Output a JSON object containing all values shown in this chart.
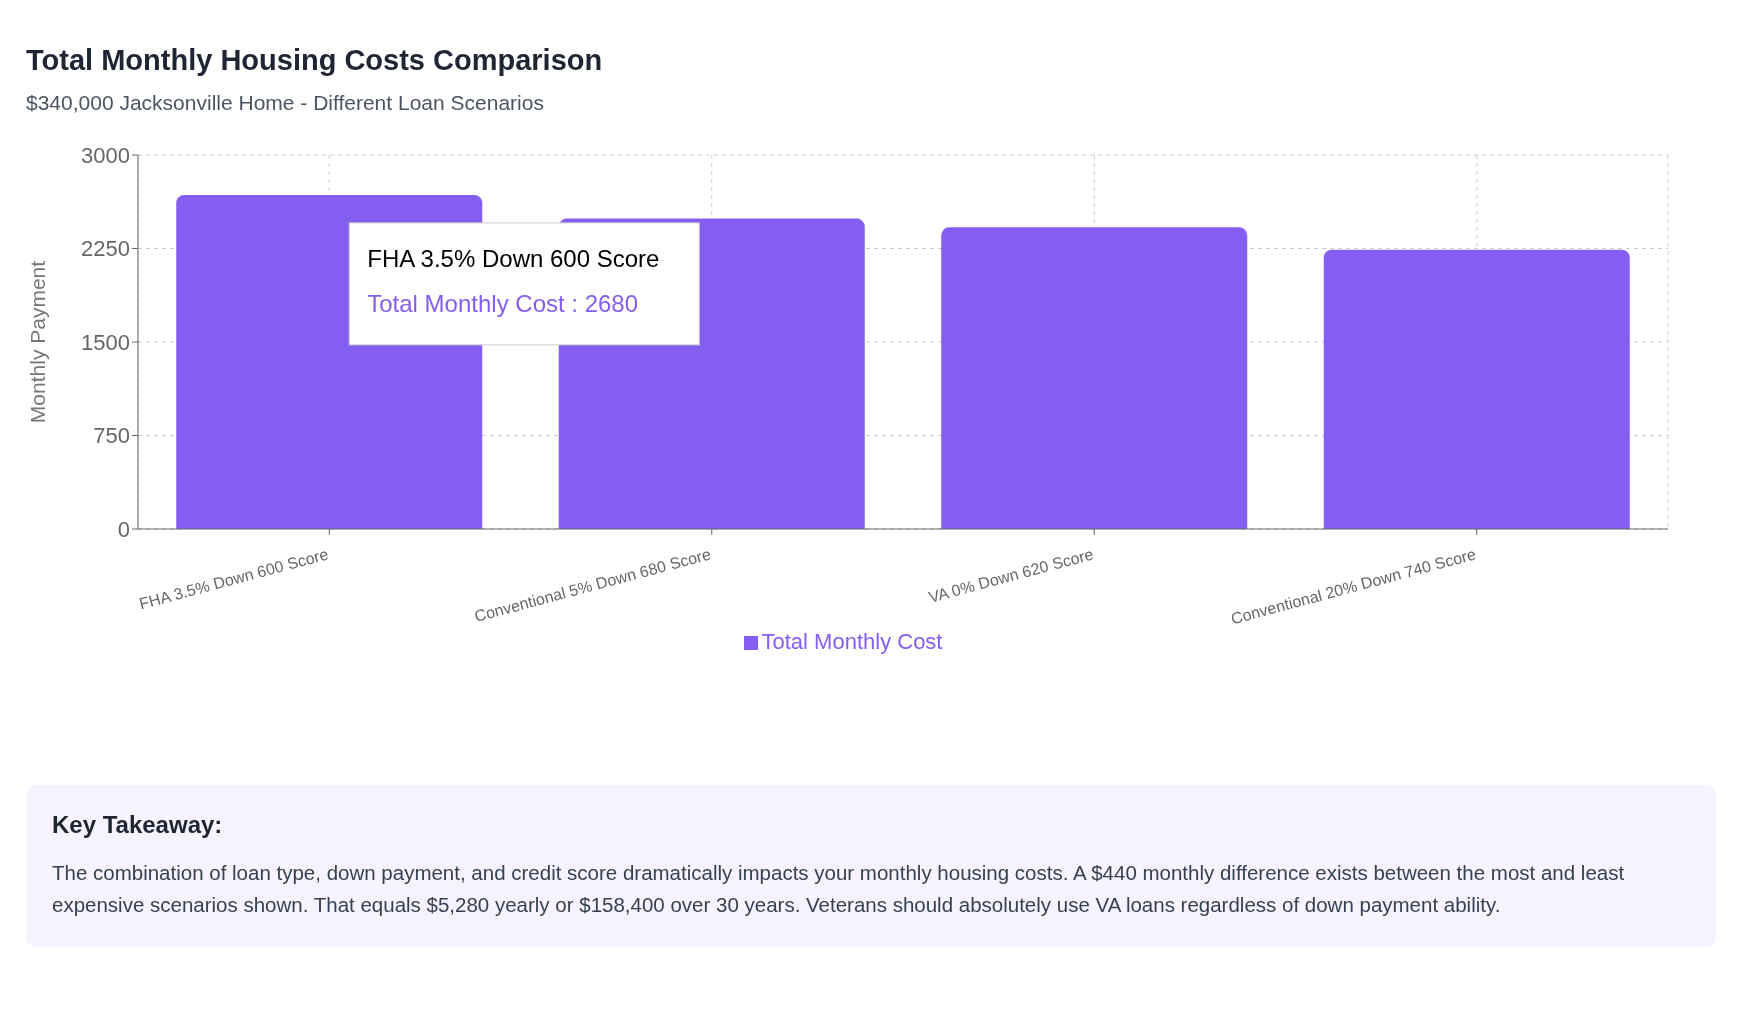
{
  "chart_data": {
    "type": "bar",
    "title": "Total Monthly Housing Costs Comparison",
    "subtitle": "$340,000 Jacksonville Home - Different Loan Scenarios",
    "ylabel": "Monthly Payment",
    "categories": [
      "FHA 3.5% Down 600 Score",
      "Conventional 5% Down 680 Score",
      "VA 0% Down 620 Score",
      "Conventional 20% Down 740 Score"
    ],
    "series": [
      {
        "name": "Total Monthly Cost",
        "color": "#845ef0",
        "values": [
          2680,
          2490,
          2420,
          2240
        ]
      }
    ],
    "ylim": [
      0,
      3000
    ],
    "yticks": [
      0,
      750,
      1500,
      2250,
      3000
    ],
    "grid": true,
    "legend": "bottom",
    "annotations": [
      {
        "text": "FHA 3.5% Down 600 Score\nTotal Monthly Cost : 2680",
        "x": "FHA 3.5% Down 600 Score",
        "y": 2680
      },
      "Key Takeaway:",
      "The combination of loan type, down payment, and credit score dramatically impacts your monthly housing costs. A $440 monthly difference exists between the most and least expensive scenarios shown. That equals $5,280 yearly or $158,400 over 30 years. Veterans should absolutely use VA loans regardless of down payment ability."
    ]
  }
}
